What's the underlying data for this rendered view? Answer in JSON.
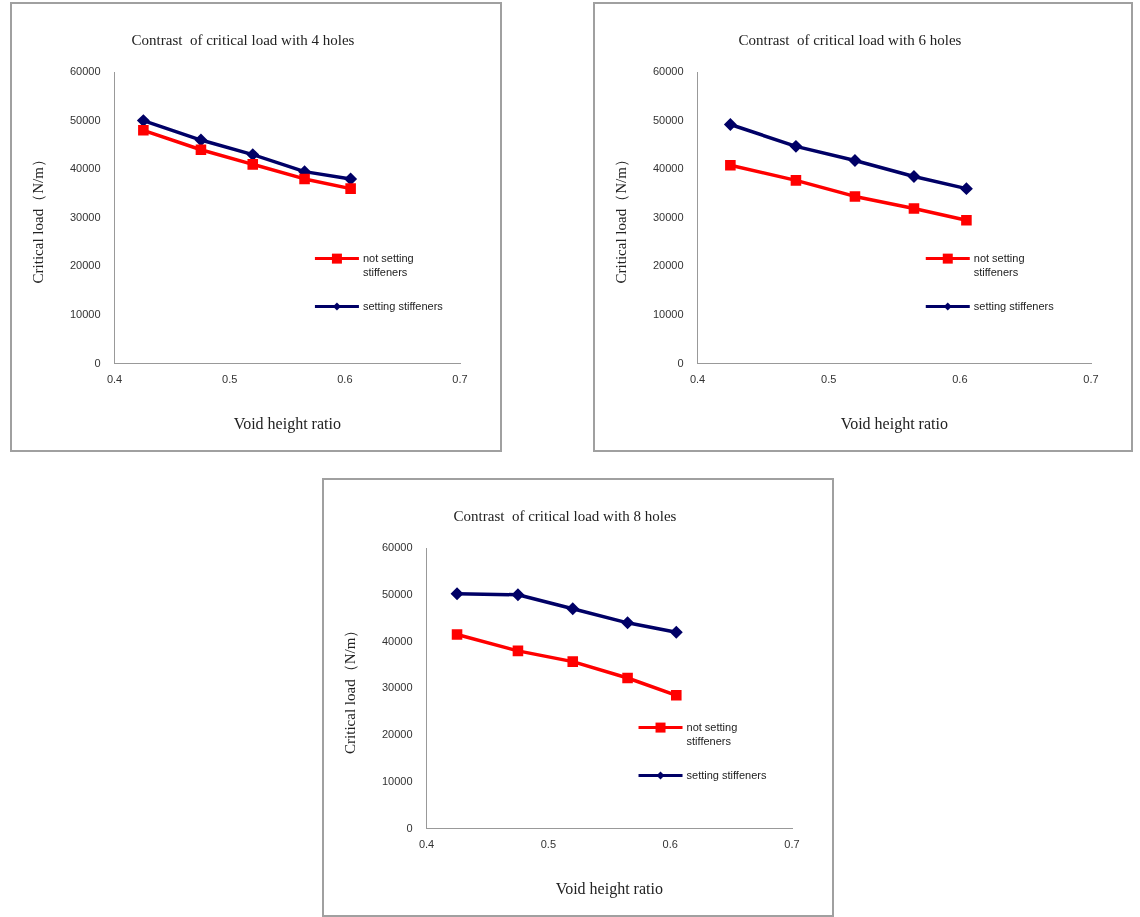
{
  "chart_data": [
    {
      "type": "line",
      "title": "Contrast  of critical load with 4 holes",
      "xlabel": "Void height ratio",
      "ylabel": "Critical load（N/m）",
      "x": [
        0.425,
        0.475,
        0.52,
        0.565,
        0.605
      ],
      "xlim": [
        0.4,
        0.7
      ],
      "xticks": [
        0.4,
        0.5,
        0.6,
        0.7
      ],
      "ylim": [
        0,
        60000
      ],
      "yticks": [
        0,
        10000,
        20000,
        30000,
        40000,
        50000,
        60000
      ],
      "grid": false,
      "legend": "right",
      "series": [
        {
          "name": "not setting stiffeners",
          "color": "#ff0000",
          "marker": "square",
          "values": [
            48000,
            44000,
            41000,
            38000,
            36000
          ]
        },
        {
          "name": "setting stiffeners",
          "color": "#000066",
          "marker": "diamond",
          "values": [
            50000,
            46000,
            43000,
            39500,
            38000
          ]
        }
      ]
    },
    {
      "type": "line",
      "title": "Contrast  of critical load with 6 holes",
      "xlabel": "Void height ratio",
      "ylabel": "Critical load（N/m）",
      "x": [
        0.425,
        0.475,
        0.52,
        0.565,
        0.605
      ],
      "xlim": [
        0.4,
        0.7
      ],
      "xticks": [
        0.4,
        0.5,
        0.6,
        0.7
      ],
      "ylim": [
        0,
        60000
      ],
      "yticks": [
        0,
        10000,
        20000,
        30000,
        40000,
        50000,
        60000
      ],
      "grid": false,
      "legend": "right",
      "series": [
        {
          "name": "not setting stiffeners",
          "color": "#ff0000",
          "marker": "square",
          "values": [
            40800,
            37700,
            34400,
            31900,
            29500
          ]
        },
        {
          "name": "setting stiffeners",
          "color": "#000066",
          "marker": "diamond",
          "values": [
            49200,
            44700,
            41800,
            38500,
            36000
          ]
        }
      ]
    },
    {
      "type": "line",
      "title": "Contrast  of critical load with 8 holes",
      "xlabel": "Void height ratio",
      "ylabel": "Critical load（N/m）",
      "x": [
        0.425,
        0.475,
        0.52,
        0.565,
        0.605
      ],
      "xlim": [
        0.4,
        0.7
      ],
      "xticks": [
        0.4,
        0.5,
        0.6,
        0.7
      ],
      "ylim": [
        0,
        60000
      ],
      "yticks": [
        0,
        10000,
        20000,
        30000,
        40000,
        50000,
        60000
      ],
      "grid": false,
      "legend": "right",
      "series": [
        {
          "name": "not setting stiffeners",
          "color": "#ff0000",
          "marker": "square",
          "values": [
            41500,
            38000,
            35700,
            32200,
            28500
          ]
        },
        {
          "name": "setting stiffeners",
          "color": "#000066",
          "marker": "diamond",
          "values": [
            50200,
            50000,
            47000,
            44000,
            42000
          ]
        }
      ]
    }
  ]
}
